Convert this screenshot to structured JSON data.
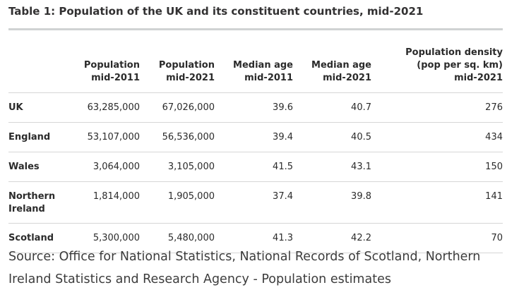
{
  "title": "Table 1: Population of the UK and its constituent countries, mid-2021",
  "columns": [
    {
      "line1": "",
      "line2": "",
      "line3": ""
    },
    {
      "line1": "",
      "line2": "Population",
      "line3": "mid-2011"
    },
    {
      "line1": "",
      "line2": "Population",
      "line3": "mid-2021"
    },
    {
      "line1": "",
      "line2": "Median age",
      "line3": "mid-2011"
    },
    {
      "line1": "",
      "line2": "Median age",
      "line3": "mid-2021"
    },
    {
      "line1": "Population density",
      "line2": "(pop per sq. km)",
      "line3": "mid-2021"
    }
  ],
  "rows": [
    {
      "name": "UK",
      "pop2011": "63,285,000",
      "pop2021": "67,026,000",
      "age2011": "39.6",
      "age2021": "40.7",
      "density": "276"
    },
    {
      "name": "England",
      "pop2011": "53,107,000",
      "pop2021": "56,536,000",
      "age2011": "39.4",
      "age2021": "40.5",
      "density": "434"
    },
    {
      "name": "Wales",
      "pop2011": "3,064,000",
      "pop2021": "3,105,000",
      "age2011": "41.5",
      "age2021": "43.1",
      "density": "150"
    },
    {
      "name": "Northern Ireland",
      "pop2011": "1,814,000",
      "pop2021": "1,905,000",
      "age2011": "37.4",
      "age2021": "39.8",
      "density": "141"
    },
    {
      "name": "Scotland",
      "pop2011": "5,300,000",
      "pop2021": "5,480,000",
      "age2011": "41.3",
      "age2021": "42.2",
      "density": "70"
    }
  ],
  "source": "Source: Office for National Statistics, National Records of Scotland, Northern Ireland Statistics and Research Agency - Population estimates"
}
